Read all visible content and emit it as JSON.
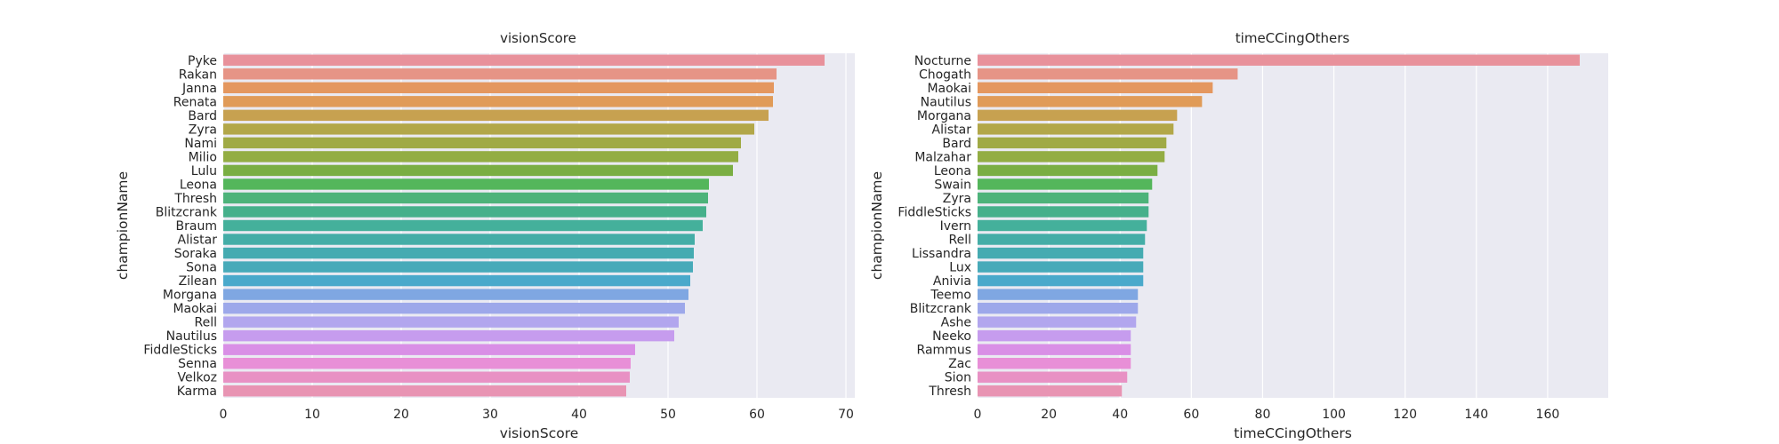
{
  "chart_data": [
    {
      "type": "bar",
      "orientation": "horizontal",
      "title": "visionScore",
      "xlabel": "visionScore",
      "ylabel": "championName",
      "xlim": [
        0,
        71
      ],
      "xticks": [
        0,
        10,
        20,
        30,
        40,
        50,
        60,
        70
      ],
      "grid": true,
      "categories": [
        "Pyke",
        "Rakan",
        "Janna",
        "Renata",
        "Bard",
        "Zyra",
        "Nami",
        "Milio",
        "Lulu",
        "Leona",
        "Thresh",
        "Blitzcrank",
        "Braum",
        "Alistar",
        "Soraka",
        "Sona",
        "Zilean",
        "Morgana",
        "Maokai",
        "Rell",
        "Nautilus",
        "FiddleSticks",
        "Senna",
        "Velkoz",
        "Karma"
      ],
      "values": [
        67.6,
        62.2,
        61.9,
        61.8,
        61.3,
        59.7,
        58.2,
        57.9,
        57.3,
        54.6,
        54.5,
        54.3,
        53.9,
        53.0,
        52.9,
        52.8,
        52.5,
        52.3,
        51.9,
        51.2,
        50.7,
        46.3,
        45.8,
        45.7,
        45.3
      ],
      "colors": [
        "#e8919b",
        "#e69486",
        "#e4975f",
        "#e09b58",
        "#c7a150",
        "#b2a749",
        "#a0aa45",
        "#93ad43",
        "#7aae43",
        "#54b65b",
        "#4db37a",
        "#46b08b",
        "#44b09b",
        "#44ada7",
        "#45abb1",
        "#47aab9",
        "#4aa9cb",
        "#7fa7e2",
        "#9da8ea",
        "#b2a6ee",
        "#c69cee",
        "#d98fe6",
        "#e88fd7",
        "#e891c4",
        "#e894b3"
      ]
    },
    {
      "type": "bar",
      "orientation": "horizontal",
      "title": "timeCCingOthers",
      "xlabel": "timeCCingOthers",
      "ylabel": "championName",
      "xlim": [
        0,
        177
      ],
      "xticks": [
        0,
        20,
        40,
        60,
        80,
        100,
        120,
        140,
        160
      ],
      "grid": true,
      "categories": [
        "Nocturne",
        "Chogath",
        "Maokai",
        "Nautilus",
        "Morgana",
        "Alistar",
        "Bard",
        "Malzahar",
        "Leona",
        "Swain",
        "Zyra",
        "FiddleSticks",
        "Ivern",
        "Rell",
        "Lissandra",
        "Lux",
        "Anivia",
        "Teemo",
        "Blitzcrank",
        "Ashe",
        "Neeko",
        "Rammus",
        "Zac",
        "Sion",
        "Thresh"
      ],
      "values": [
        169,
        73,
        66,
        63,
        56,
        55,
        53,
        52.5,
        50.5,
        49,
        48,
        48,
        47.5,
        47,
        46.5,
        46.5,
        46.5,
        45,
        45,
        44.5,
        43,
        43,
        43,
        42,
        40.5
      ],
      "colors": [
        "#e8919b",
        "#e69486",
        "#e4975f",
        "#e09b58",
        "#c7a150",
        "#b2a749",
        "#a0aa45",
        "#93ad43",
        "#7aae43",
        "#54b65b",
        "#4db37a",
        "#46b08b",
        "#44b09b",
        "#44ada7",
        "#45abb1",
        "#47aab9",
        "#4aa9cb",
        "#7fa7e2",
        "#9da8ea",
        "#b2a6ee",
        "#c69cee",
        "#d98fe6",
        "#e88fd7",
        "#e891c4",
        "#e894b3"
      ]
    }
  ]
}
